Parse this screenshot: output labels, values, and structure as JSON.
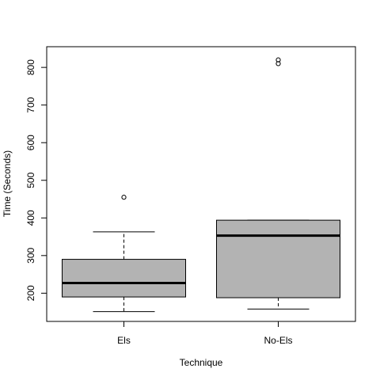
{
  "chart_data": {
    "type": "boxplot",
    "title": "",
    "xlabel": "Technique",
    "ylabel": "Time (Seconds)",
    "categories": [
      "Els",
      "No-Els"
    ],
    "ylim": [
      125,
      855
    ],
    "yticks": [
      200,
      300,
      400,
      500,
      600,
      700,
      800
    ],
    "boxes": [
      {
        "name": "Els",
        "whisker_low": 151,
        "q1": 190,
        "median": 227,
        "q3": 290,
        "whisker_high": 363,
        "outliers": [
          455
        ]
      },
      {
        "name": "No-Els",
        "whisker_low": 158,
        "q1": 188,
        "median": 353,
        "q3": 394,
        "whisker_high": 394,
        "outliers": [
          810,
          820
        ]
      }
    ],
    "box_fill": "#b3b3b3",
    "line_color": "#000000",
    "grid": false
  }
}
